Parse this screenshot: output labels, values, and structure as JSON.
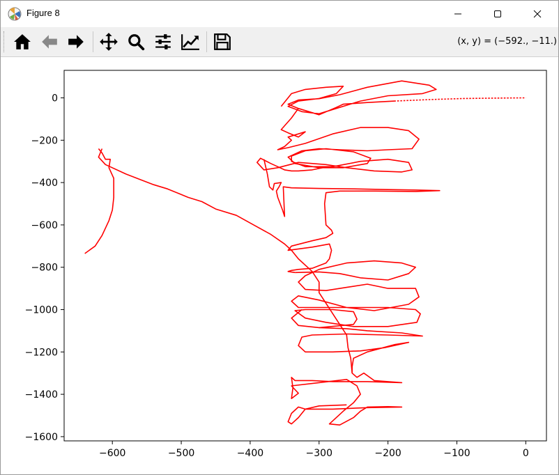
{
  "window": {
    "title": "Figure 8",
    "controls": {
      "minimize": "minimize",
      "maximize": "maximize",
      "close": "close"
    }
  },
  "toolbar": {
    "buttons": [
      {
        "name": "home",
        "icon": "home-icon"
      },
      {
        "name": "back",
        "icon": "back-arrow-icon"
      },
      {
        "name": "forward",
        "icon": "forward-arrow-icon"
      },
      {
        "name": "pan",
        "icon": "move-arrows-icon"
      },
      {
        "name": "zoom",
        "icon": "magnifier-icon"
      },
      {
        "name": "configure-subplots",
        "icon": "sliders-icon"
      },
      {
        "name": "edit-axis",
        "icon": "trend-chart-icon"
      },
      {
        "name": "save",
        "icon": "floppy-disk-icon"
      }
    ],
    "coordinates_text": "(x, y) = (−592., −11.)"
  },
  "chart_data": {
    "type": "line",
    "title": "",
    "xlabel": "",
    "ylabel": "",
    "xlim": [
      -670,
      30
    ],
    "ylim": [
      -1620,
      130
    ],
    "xticks": [
      -600,
      -500,
      -400,
      -300,
      -200,
      -100,
      0
    ],
    "yticks": [
      0,
      -200,
      -400,
      -600,
      -800,
      -1000,
      -1200,
      -1400,
      -1600
    ],
    "xtick_labels": [
      "−600",
      "−500",
      "−400",
      "−300",
      "−200",
      "−100",
      "0"
    ],
    "ytick_labels": [
      "0",
      "−200",
      "−400",
      "−600",
      "−800",
      "−1000",
      "−1200",
      "−1400",
      "−1600"
    ],
    "grid": false,
    "color": "#ff0000",
    "series": [
      {
        "name": "path",
        "points": [
          [
            0,
            0
          ],
          [
            -40,
            -1
          ],
          [
            -90,
            -3
          ],
          [
            -140,
            -8
          ],
          [
            -190,
            -15
          ],
          [
            -230,
            -22
          ],
          [
            -265,
            -30
          ],
          [
            -275,
            -45
          ],
          [
            -300,
            -80
          ],
          [
            -330,
            -50
          ],
          [
            -345,
            -30
          ],
          [
            -330,
            -10
          ],
          [
            -300,
            -4
          ],
          [
            -270,
            15
          ],
          [
            -230,
            50
          ],
          [
            -180,
            80
          ],
          [
            -140,
            60
          ],
          [
            -130,
            40
          ],
          [
            -150,
            20
          ],
          [
            -200,
            10
          ],
          [
            -240,
            -15
          ],
          [
            -275,
            -50
          ],
          [
            -300,
            -75
          ],
          [
            -325,
            -65
          ],
          [
            -345,
            -40
          ],
          [
            -330,
            -15
          ],
          [
            -300,
            -3
          ],
          [
            -275,
            20
          ],
          [
            -265,
            55
          ],
          [
            -290,
            50
          ],
          [
            -320,
            40
          ],
          [
            -340,
            20
          ],
          [
            -355,
            -40
          ]
        ]
      },
      {
        "name": "path2",
        "points": [
          [
            -330,
            -50
          ],
          [
            -340,
            -95
          ],
          [
            -355,
            -150
          ],
          [
            -345,
            -165
          ],
          [
            -330,
            -185
          ],
          [
            -320,
            -160
          ],
          [
            -345,
            -185
          ],
          [
            -340,
            -200
          ],
          [
            -350,
            -230
          ],
          [
            -360,
            -245
          ],
          [
            -345,
            -235
          ],
          [
            -320,
            -215
          ],
          [
            -280,
            -170
          ],
          [
            -240,
            -140
          ],
          [
            -200,
            -140
          ],
          [
            -170,
            -155
          ],
          [
            -155,
            -195
          ],
          [
            -165,
            -240
          ],
          [
            -200,
            -245
          ],
          [
            -230,
            -250
          ],
          [
            -270,
            -245
          ],
          [
            -300,
            -240
          ],
          [
            -325,
            -250
          ],
          [
            -345,
            -280
          ],
          [
            -335,
            -310
          ],
          [
            -300,
            -330
          ],
          [
            -265,
            -330
          ],
          [
            -230,
            -310
          ],
          [
            -225,
            -285
          ],
          [
            -250,
            -255
          ],
          [
            -290,
            -240
          ]
        ]
      },
      {
        "name": "path3",
        "points": [
          [
            -290,
            -240
          ],
          [
            -320,
            -250
          ],
          [
            -340,
            -275
          ],
          [
            -340,
            -300
          ],
          [
            -320,
            -325
          ],
          [
            -280,
            -325
          ],
          [
            -240,
            -300
          ],
          [
            -200,
            -290
          ],
          [
            -170,
            -305
          ],
          [
            -165,
            -340
          ],
          [
            -180,
            -350
          ],
          [
            -220,
            -345
          ],
          [
            -260,
            -330
          ],
          [
            -290,
            -315
          ],
          [
            -330,
            -305
          ],
          [
            -360,
            -330
          ],
          [
            -380,
            -340
          ],
          [
            -390,
            -305
          ],
          [
            -385,
            -285
          ],
          [
            -370,
            -310
          ],
          [
            -360,
            -325
          ],
          [
            -350,
            -340
          ],
          [
            -340,
            -345
          ],
          [
            -330,
            -345
          ],
          [
            -310,
            -340
          ],
          [
            -295,
            -330
          ]
        ]
      },
      {
        "name": "path4",
        "points": [
          [
            -380,
            -290
          ],
          [
            -375,
            -360
          ],
          [
            -372,
            -420
          ],
          [
            -367,
            -435
          ],
          [
            -365,
            -405
          ],
          [
            -355,
            -400
          ],
          [
            -358,
            -420
          ],
          [
            -362,
            -440
          ],
          [
            -360,
            -470
          ],
          [
            -353,
            -530
          ],
          [
            -350,
            -560
          ],
          [
            -352,
            -420
          ],
          [
            -340,
            -425
          ],
          [
            -300,
            -428
          ],
          [
            -250,
            -430
          ],
          [
            -200,
            -433
          ],
          [
            -160,
            -435
          ],
          [
            -125,
            -438
          ],
          [
            -160,
            -442
          ],
          [
            -220,
            -440
          ],
          [
            -270,
            -440
          ],
          [
            -290,
            -448
          ],
          [
            -292,
            -500
          ],
          [
            -290,
            -600
          ],
          [
            -282,
            -625
          ],
          [
            -280,
            -640
          ],
          [
            -290,
            -660
          ],
          [
            -310,
            -675
          ],
          [
            -340,
            -700
          ],
          [
            -345,
            -720
          ],
          [
            -310,
            -705
          ],
          [
            -285,
            -690
          ],
          [
            -282,
            -720
          ],
          [
            -285,
            -760
          ],
          [
            -290,
            -780
          ],
          [
            -310,
            -805
          ],
          [
            -330,
            -810
          ],
          [
            -340,
            -815
          ],
          [
            -345,
            -820
          ],
          [
            -335,
            -825
          ]
        ]
      },
      {
        "name": "path5",
        "points": [
          [
            -335,
            -825
          ],
          [
            -300,
            -822
          ],
          [
            -270,
            -830
          ],
          [
            -240,
            -850
          ],
          [
            -200,
            -860
          ],
          [
            -170,
            -830
          ],
          [
            -160,
            -800
          ],
          [
            -180,
            -780
          ],
          [
            -220,
            -770
          ],
          [
            -260,
            -780
          ],
          [
            -300,
            -810
          ],
          [
            -320,
            -840
          ],
          [
            -330,
            -870
          ],
          [
            -320,
            -905
          ],
          [
            -290,
            -910
          ],
          [
            -260,
            -895
          ],
          [
            -230,
            -880
          ],
          [
            -200,
            -900
          ],
          [
            -160,
            -900
          ],
          [
            -155,
            -940
          ],
          [
            -170,
            -975
          ],
          [
            -220,
            -1005
          ],
          [
            -260,
            -990
          ],
          [
            -300,
            -955
          ],
          [
            -330,
            -935
          ],
          [
            -340,
            -960
          ],
          [
            -330,
            -990
          ],
          [
            -300,
            -990
          ],
          [
            -250,
            -990
          ],
          [
            -200,
            -990
          ],
          [
            -160,
            -1000
          ],
          [
            -153,
            -1020
          ],
          [
            -158,
            -1060
          ],
          [
            -200,
            -1080
          ],
          [
            -250,
            -1080
          ],
          [
            -290,
            -1060
          ],
          [
            -320,
            -1040
          ],
          [
            -335,
            -1005
          ],
          [
            -320,
            -1000
          ],
          [
            -280,
            -1000
          ],
          [
            -250,
            -1010
          ],
          [
            -245,
            -1045
          ],
          [
            -250,
            -1070
          ],
          [
            -300,
            -1085
          ],
          [
            -330,
            -1075
          ],
          [
            -340,
            -1040
          ],
          [
            -325,
            -1000
          ]
        ]
      },
      {
        "name": "path6",
        "points": [
          [
            -300,
            -1085
          ],
          [
            -260,
            -1090
          ],
          [
            -230,
            -1100
          ],
          [
            -180,
            -1110
          ],
          [
            -150,
            -1125
          ],
          [
            -200,
            -1120
          ],
          [
            -260,
            -1115
          ],
          [
            -310,
            -1120
          ],
          [
            -325,
            -1130
          ],
          [
            -330,
            -1170
          ],
          [
            -320,
            -1200
          ],
          [
            -280,
            -1200
          ],
          [
            -240,
            -1195
          ],
          [
            -205,
            -1180
          ],
          [
            -170,
            -1155
          ],
          [
            -190,
            -1165
          ],
          [
            -230,
            -1200
          ],
          [
            -250,
            -1230
          ],
          [
            -252,
            -1270
          ],
          [
            -252,
            -1300
          ],
          [
            -245,
            -1320
          ],
          [
            -235,
            -1300
          ],
          [
            -220,
            -1335
          ],
          [
            -180,
            -1345
          ],
          [
            -230,
            -1340
          ],
          [
            -280,
            -1340
          ],
          [
            -310,
            -1335
          ],
          [
            -335,
            -1335
          ],
          [
            -340,
            -1320
          ],
          [
            -338,
            -1370
          ],
          [
            -340,
            -1420
          ],
          [
            -330,
            -1395
          ],
          [
            -340,
            -1360
          ],
          [
            -300,
            -1345
          ],
          [
            -260,
            -1330
          ],
          [
            -245,
            -1360
          ],
          [
            -240,
            -1400
          ],
          [
            -250,
            -1440
          ],
          [
            -265,
            -1480
          ],
          [
            -285,
            -1540
          ],
          [
            -270,
            -1545
          ],
          [
            -250,
            -1510
          ],
          [
            -240,
            -1480
          ],
          [
            -230,
            -1460
          ],
          [
            -200,
            -1458
          ],
          [
            -180,
            -1460
          ],
          [
            -230,
            -1463
          ],
          [
            -280,
            -1470
          ],
          [
            -320,
            -1470
          ],
          [
            -330,
            -1460
          ],
          [
            -340,
            -1490
          ],
          [
            -345,
            -1530
          ],
          [
            -340,
            -1540
          ],
          [
            -330,
            -1510
          ],
          [
            -320,
            -1470
          ],
          [
            -300,
            -1455
          ],
          [
            -260,
            -1450
          ]
        ]
      },
      {
        "name": "path7",
        "points": [
          [
            -620,
            -240
          ],
          [
            -615,
            -260
          ],
          [
            -610,
            -290
          ],
          [
            -603,
            -290
          ],
          [
            -605,
            -330
          ],
          [
            -598,
            -380
          ],
          [
            -598,
            -420
          ],
          [
            -598,
            -470
          ],
          [
            -600,
            -530
          ],
          [
            -605,
            -580
          ],
          [
            -615,
            -650
          ],
          [
            -625,
            -700
          ],
          [
            -640,
            -735
          ]
        ]
      },
      {
        "name": "path8",
        "points": [
          [
            -615,
            -240
          ],
          [
            -620,
            -280
          ],
          [
            -610,
            -315
          ],
          [
            -580,
            -360
          ],
          [
            -560,
            -385
          ],
          [
            -540,
            -410
          ],
          [
            -520,
            -430
          ],
          [
            -505,
            -450
          ],
          [
            -490,
            -470
          ],
          [
            -470,
            -490
          ],
          [
            -450,
            -525
          ],
          [
            -420,
            -555
          ],
          [
            -395,
            -600
          ],
          [
            -370,
            -645
          ],
          [
            -350,
            -690
          ],
          [
            -340,
            -720
          ],
          [
            -330,
            -760
          ],
          [
            -310,
            -820
          ],
          [
            -300,
            -870
          ],
          [
            -300,
            -920
          ],
          [
            -290,
            -970
          ],
          [
            -280,
            -1020
          ],
          [
            -270,
            -1070
          ],
          [
            -260,
            -1120
          ],
          [
            -258,
            -1180
          ],
          [
            -254,
            -1230
          ],
          [
            -252,
            -1300
          ]
        ]
      }
    ]
  }
}
